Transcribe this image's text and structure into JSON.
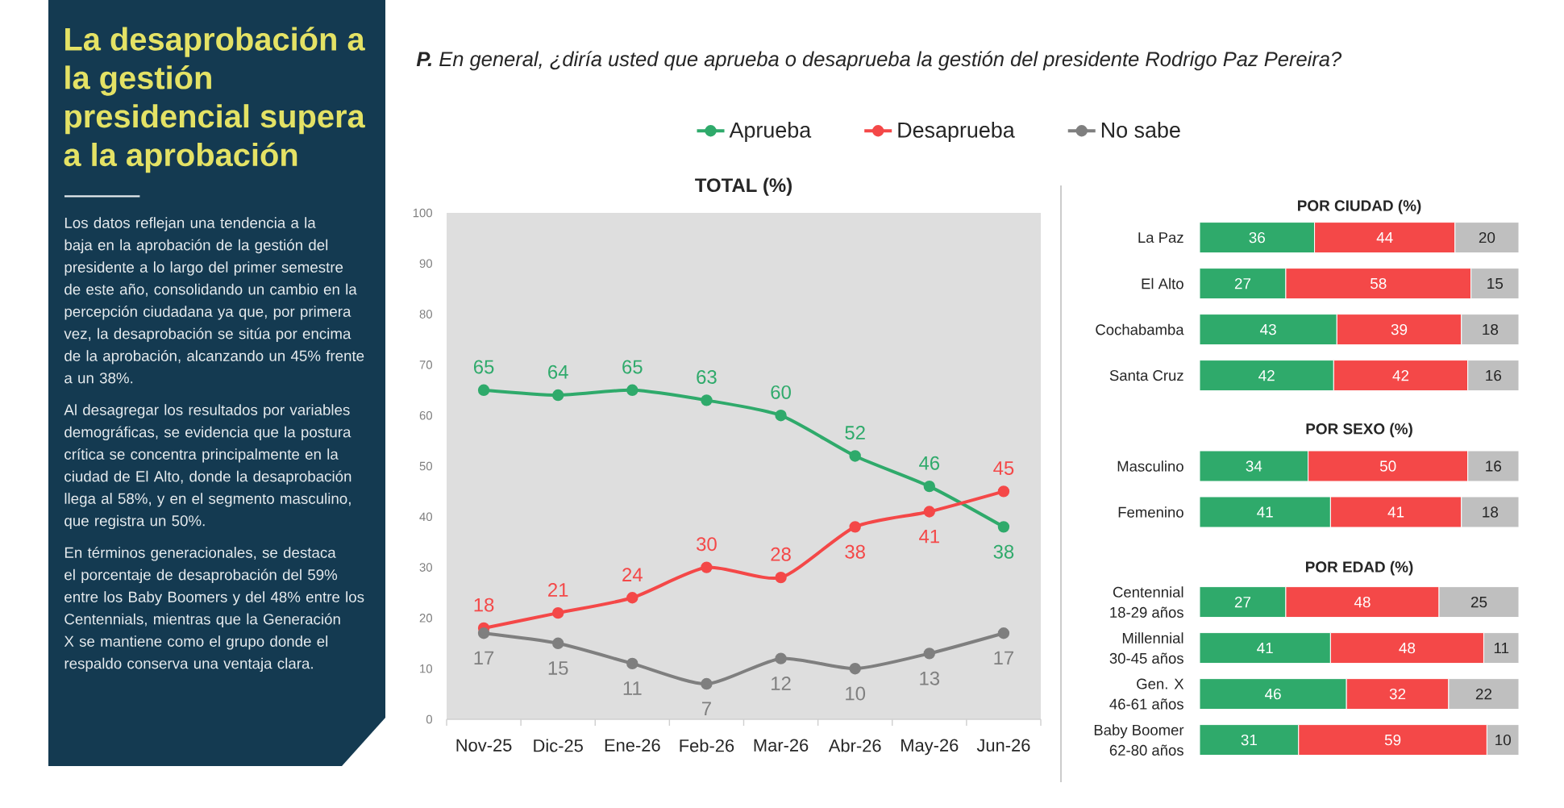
{
  "chart_data": [
    {
      "type": "other",
      "title": "La desaprobación a la gestión presidencial supera a la aprobación",
      "annotations": [
        "Los datos reflejan una tendencia a la baja en la aprobación de la gestión del presidente a lo largo del primer semestre de este año, consolidando un cambio en la percepción ciudadana ya que, por primera vez, la desaprobación se sitúa por encima de la aprobación, alcanzando un 45% frente a un 38%.",
        "Al desagregar los resultados por variables demográficas, se evidencia que la postura crítica se concentra principalmente en la ciudad de El Alto, donde la desaprobación llega al 58%, y en el segmento masculino, que registra un 50%.",
        "En términos generacionales, se destaca el porcentaje de desaprobación del 59% entre los Baby Boomers y del 48% entre los Centennials, mientras que la Generación X se mantiene como el grupo donde el respaldo conserva una ventaja clara."
      ]
    },
    {
      "type": "line",
      "title": "TOTAL (%)",
      "annotations": [
        "**P.** En general, ¿diría usted que aprueba o desaprueba la gestión del presidente Rodrigo Paz Pereira?"
      ],
      "categories": [
        "Nov-25",
        "Dic-25",
        "Ene-26",
        "Feb-26",
        "Mar-26",
        "Abr-26",
        "May-26",
        "Jun-26"
      ],
      "series": [
        {
          "name": "Aprueba",
          "color": "#2faa6b",
          "values": [
            65,
            64,
            65,
            63,
            60,
            52,
            46,
            38
          ]
        },
        {
          "name": "Desaprueba",
          "color": "#f44848",
          "values": [
            18,
            21,
            24,
            30,
            28,
            38,
            41,
            45
          ]
        },
        {
          "name": "No sabe",
          "color": "#7f7f7f",
          "values": [
            17,
            15,
            11,
            7,
            12,
            10,
            13,
            17
          ]
        }
      ],
      "ylim": [
        0,
        100
      ],
      "yticks": [
        0,
        10,
        20,
        30,
        40,
        50,
        60,
        70,
        80,
        90,
        100
      ],
      "data_labels": true,
      "legend": "top",
      "marker": "circle"
    },
    {
      "type": "bar",
      "orientation": "horizontal",
      "stacked": true,
      "title": "POR CIUDAD (%)",
      "categories": [
        "La Paz",
        "El Alto",
        "Cochabamba",
        "Santa Cruz"
      ],
      "series": [
        {
          "color": "#2faa6b",
          "values": [
            36,
            27,
            43,
            42
          ]
        },
        {
          "color": "#f44848",
          "values": [
            44,
            58,
            39,
            42
          ]
        },
        {
          "color": "#bfbfbf",
          "values": [
            20,
            15,
            18,
            16
          ]
        }
      ],
      "data_labels": true,
      "tick_labels": "y"
    },
    {
      "type": "bar",
      "orientation": "horizontal",
      "stacked": true,
      "title": "POR SEXO (%)",
      "categories": [
        "Masculino",
        "Femenino"
      ],
      "series": [
        {
          "color": "#2faa6b",
          "values": [
            34,
            41
          ]
        },
        {
          "color": "#f44848",
          "values": [
            50,
            41
          ]
        },
        {
          "color": "#bfbfbf",
          "values": [
            16,
            18
          ]
        }
      ],
      "data_labels": true,
      "tick_labels": "y"
    },
    {
      "type": "bar",
      "orientation": "horizontal",
      "stacked": true,
      "title": "POR EDAD (%)",
      "categories": [
        "Centennial\n18-29 años",
        "Millennial\n30-45 años",
        "Gen. X\n46-61 años",
        "Baby Boomer\n62-80 años"
      ],
      "series": [
        {
          "color": "#2faa6b",
          "values": [
            27,
            41,
            46,
            31
          ]
        },
        {
          "color": "#f44848",
          "values": [
            48,
            48,
            32,
            59
          ]
        },
        {
          "color": "#bfbfbf",
          "values": [
            25,
            11,
            22,
            10
          ]
        }
      ],
      "data_labels": true,
      "tick_labels": "y"
    }
  ]
}
